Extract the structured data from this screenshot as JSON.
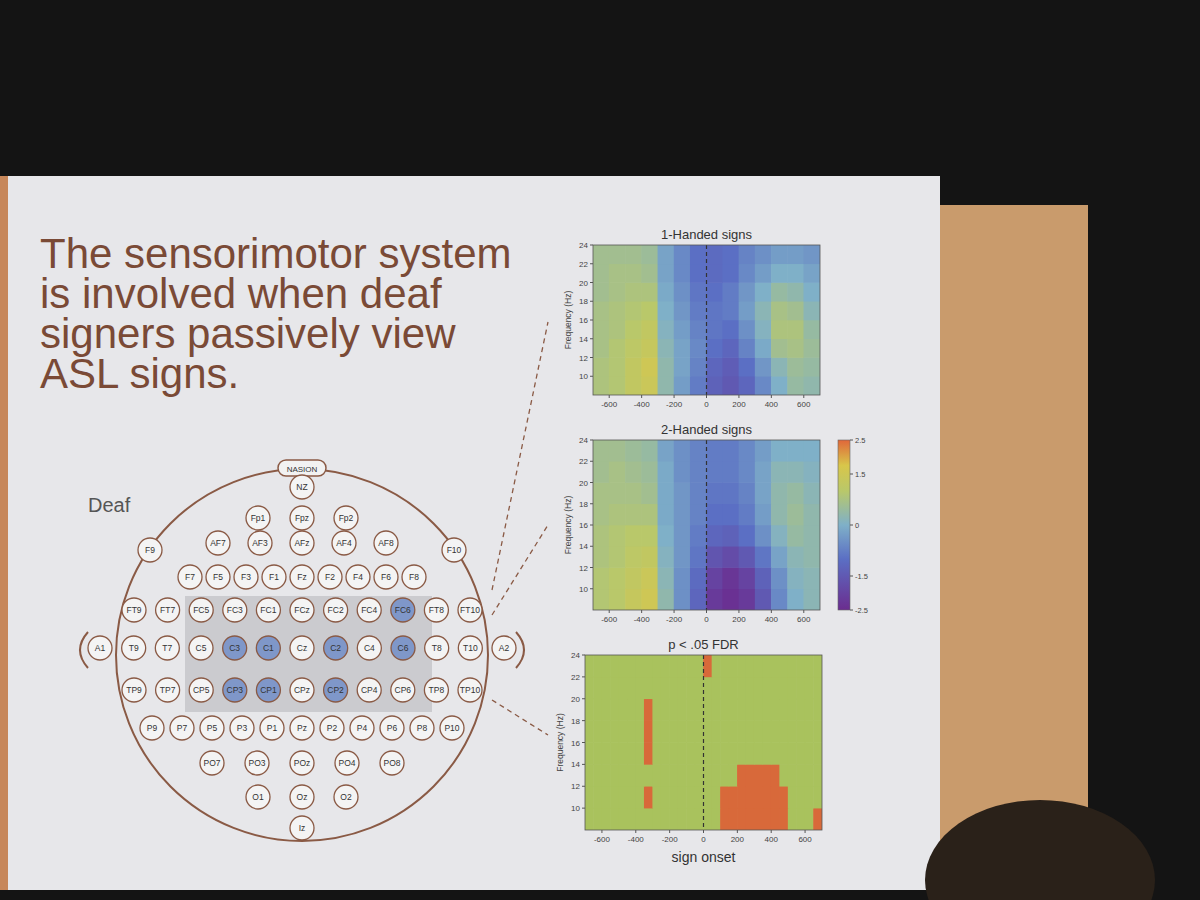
{
  "slide": {
    "title": "The sensorimotor system is involved when deaf signers passively view ASL signs."
  },
  "head": {
    "label": "Deaf",
    "nasion": "NASION",
    "rows": [
      [
        "NZ"
      ],
      [
        "Fp1",
        "Fpz",
        "Fp2"
      ],
      [
        "AF7",
        "AF3",
        "AFz",
        "AF4",
        "AF8"
      ],
      [
        "F9",
        "F10"
      ],
      [
        "F7",
        "F5",
        "F3",
        "F1",
        "Fz",
        "F2",
        "F4",
        "F6",
        "F8"
      ],
      [
        "FT9",
        "FT7",
        "FC5",
        "FC3",
        "FC1",
        "FCz",
        "FC2",
        "FC4",
        "FC6",
        "FT8",
        "FT10"
      ],
      [
        "A1",
        "T9",
        "T7",
        "C5",
        "C3",
        "C1",
        "Cz",
        "C2",
        "C4",
        "C6",
        "T8",
        "T10",
        "A2"
      ],
      [
        "TP9",
        "TP7",
        "CP5",
        "CP3",
        "CP1",
        "CPz",
        "CP2",
        "CP4",
        "CP6",
        "TP8",
        "TP10"
      ],
      [
        "P9",
        "P7",
        "P5",
        "P3",
        "P1",
        "Pz",
        "P2",
        "P4",
        "P6",
        "P8",
        "P10"
      ],
      [
        "PO7",
        "PO3",
        "POz",
        "PO4",
        "PO8"
      ],
      [
        "O1",
        "Oz",
        "O2"
      ],
      [
        "Iz"
      ]
    ],
    "highlighted": [
      "FC6",
      "C3",
      "C1",
      "C2",
      "C6",
      "CP3",
      "CP1",
      "CP2"
    ]
  },
  "chart_data": [
    {
      "type": "heatmap",
      "title": "1-Handed signs",
      "y_label": "Frequency (Hz)",
      "xlim": [
        -700,
        700
      ],
      "ylim": [
        8,
        24
      ],
      "xticks": [
        -600,
        -400,
        -200,
        0,
        200,
        400,
        600
      ],
      "yticks": [
        10,
        12,
        14,
        16,
        18,
        20,
        22,
        24
      ],
      "onset": 0,
      "zlim": [
        -2.5,
        2.5
      ],
      "x": [
        -650,
        -550,
        -450,
        -350,
        -250,
        -150,
        -50,
        50,
        150,
        250,
        350,
        450,
        550,
        650
      ],
      "y": [
        9,
        11,
        13,
        15,
        17,
        19,
        21,
        23
      ],
      "cells": [
        [
          0.8,
          0.9,
          1.2,
          1.4,
          0.3,
          -0.3,
          -0.8,
          -1.3,
          -1.5,
          -1.2,
          -0.6,
          0.0,
          0.4,
          0.3
        ],
        [
          0.8,
          0.9,
          1.2,
          1.5,
          0.3,
          -0.2,
          -0.7,
          -1.2,
          -1.4,
          -1.0,
          -0.4,
          0.2,
          0.5,
          0.4
        ],
        [
          0.7,
          0.9,
          1.1,
          1.3,
          0.2,
          -0.2,
          -0.6,
          -1.0,
          -1.2,
          -0.7,
          -0.1,
          0.6,
          0.7,
          0.5
        ],
        [
          0.7,
          0.8,
          1.0,
          1.2,
          0.1,
          -0.3,
          -0.7,
          -0.9,
          -1.0,
          -0.5,
          0.1,
          0.8,
          0.8,
          0.4
        ],
        [
          0.7,
          0.8,
          0.9,
          1.0,
          0.0,
          -0.4,
          -0.8,
          -0.9,
          -0.8,
          -0.3,
          0.2,
          0.7,
          0.6,
          0.2
        ],
        [
          0.6,
          0.7,
          0.8,
          0.8,
          -0.1,
          -0.5,
          -0.9,
          -1.0,
          -0.8,
          -0.4,
          0.0,
          0.4,
          0.3,
          0.0
        ],
        [
          0.6,
          0.7,
          0.7,
          0.6,
          -0.2,
          -0.6,
          -1.0,
          -1.1,
          -1.0,
          -0.6,
          -0.3,
          0.0,
          0.0,
          -0.2
        ],
        [
          0.6,
          0.6,
          0.6,
          0.5,
          -0.2,
          -0.6,
          -1.0,
          -1.1,
          -1.0,
          -0.7,
          -0.5,
          -0.3,
          -0.3,
          -0.4
        ]
      ]
    },
    {
      "type": "heatmap",
      "title": "2-Handed signs",
      "y_label": "Frequency (Hz)",
      "xlim": [
        -700,
        700
      ],
      "ylim": [
        8,
        24
      ],
      "xticks": [
        -600,
        -400,
        -200,
        0,
        200,
        400,
        600
      ],
      "yticks": [
        10,
        12,
        14,
        16,
        18,
        20,
        22,
        24
      ],
      "onset": 0,
      "zlim": [
        -2.5,
        2.5
      ],
      "colorbar_ticks": [
        -2.5,
        -1.5,
        0,
        1.5,
        2.5
      ],
      "x": [
        -650,
        -550,
        -450,
        -350,
        -250,
        -150,
        -50,
        50,
        150,
        250,
        350,
        450,
        550,
        650
      ],
      "y": [
        9,
        11,
        13,
        15,
        17,
        19,
        21,
        23
      ],
      "cells": [
        [
          0.9,
          1.0,
          1.3,
          1.5,
          0.3,
          -0.5,
          -1.2,
          -2.2,
          -2.4,
          -2.2,
          -1.5,
          -0.6,
          0.0,
          0.2
        ],
        [
          0.9,
          1.0,
          1.2,
          1.4,
          0.2,
          -0.5,
          -1.1,
          -2.0,
          -2.3,
          -2.0,
          -1.3,
          -0.5,
          0.1,
          0.2
        ],
        [
          0.8,
          0.9,
          1.1,
          1.2,
          0.1,
          -0.4,
          -0.9,
          -1.6,
          -1.8,
          -1.5,
          -0.9,
          -0.2,
          0.2,
          0.3
        ],
        [
          0.8,
          0.9,
          1.0,
          1.0,
          0.0,
          -0.4,
          -0.8,
          -1.2,
          -1.3,
          -1.0,
          -0.5,
          0.1,
          0.4,
          0.3
        ],
        [
          0.7,
          0.8,
          0.8,
          0.8,
          -0.1,
          -0.4,
          -0.7,
          -1.0,
          -1.0,
          -0.8,
          -0.3,
          0.3,
          0.5,
          0.3
        ],
        [
          0.7,
          0.7,
          0.7,
          0.6,
          -0.1,
          -0.4,
          -0.7,
          -0.9,
          -0.9,
          -0.7,
          -0.2,
          0.3,
          0.4,
          0.2
        ],
        [
          0.6,
          0.7,
          0.6,
          0.5,
          -0.1,
          -0.5,
          -0.7,
          -0.8,
          -0.8,
          -0.6,
          -0.2,
          0.2,
          0.2,
          0.1
        ],
        [
          0.6,
          0.6,
          0.5,
          0.4,
          -0.2,
          -0.5,
          -0.7,
          -0.8,
          -0.8,
          -0.6,
          -0.3,
          0.0,
          0.0,
          0.0
        ]
      ]
    },
    {
      "type": "mask",
      "title": "p < .05 FDR",
      "y_label": "Frequency (Hz)",
      "x_label": "sign onset",
      "xlim": [
        -700,
        700
      ],
      "ylim": [
        8,
        24
      ],
      "xticks": [
        -600,
        -400,
        -200,
        0,
        200,
        400,
        600
      ],
      "yticks": [
        10,
        12,
        14,
        16,
        18,
        20,
        22,
        24
      ],
      "onset": 0,
      "x": [
        -675,
        -625,
        -575,
        -525,
        -475,
        -425,
        -375,
        -325,
        -275,
        -225,
        -175,
        -125,
        -75,
        -25,
        25,
        75,
        125,
        175,
        225,
        275,
        325,
        375,
        425,
        475,
        525,
        575,
        625,
        675
      ],
      "y": [
        9,
        11,
        13,
        15,
        17,
        19,
        21,
        23
      ],
      "cells": [
        [
          0,
          0,
          0,
          0,
          0,
          0,
          0,
          0,
          0,
          0,
          0,
          0,
          0,
          0,
          0,
          0,
          1,
          1,
          1,
          1,
          1,
          1,
          1,
          1,
          0,
          0,
          0,
          1
        ],
        [
          0,
          0,
          0,
          0,
          0,
          0,
          0,
          1,
          0,
          0,
          0,
          0,
          0,
          0,
          0,
          0,
          1,
          1,
          1,
          1,
          1,
          1,
          1,
          1,
          0,
          0,
          0,
          0
        ],
        [
          0,
          0,
          0,
          0,
          0,
          0,
          0,
          0,
          0,
          0,
          0,
          0,
          0,
          0,
          0,
          0,
          0,
          0,
          1,
          1,
          1,
          1,
          1,
          0,
          0,
          0,
          0,
          0
        ],
        [
          0,
          0,
          0,
          0,
          0,
          0,
          0,
          1,
          0,
          0,
          0,
          0,
          0,
          0,
          0,
          0,
          0,
          0,
          0,
          0,
          0,
          0,
          0,
          0,
          0,
          0,
          0,
          0
        ],
        [
          0,
          0,
          0,
          0,
          0,
          0,
          0,
          1,
          0,
          0,
          0,
          0,
          0,
          0,
          0,
          0,
          0,
          0,
          0,
          0,
          0,
          0,
          0,
          0,
          0,
          0,
          0,
          0
        ],
        [
          0,
          0,
          0,
          0,
          0,
          0,
          0,
          1,
          0,
          0,
          0,
          0,
          0,
          0,
          0,
          0,
          0,
          0,
          0,
          0,
          0,
          0,
          0,
          0,
          0,
          0,
          0,
          0
        ],
        [
          0,
          0,
          0,
          0,
          0,
          0,
          0,
          0,
          0,
          0,
          0,
          0,
          0,
          0,
          0,
          0,
          0,
          0,
          0,
          0,
          0,
          0,
          0,
          0,
          0,
          0,
          0,
          0
        ],
        [
          0,
          0,
          0,
          0,
          0,
          0,
          0,
          0,
          0,
          0,
          0,
          0,
          0,
          0,
          1,
          0,
          0,
          0,
          0,
          0,
          0,
          0,
          0,
          0,
          0,
          0,
          0,
          0
        ]
      ]
    }
  ]
}
